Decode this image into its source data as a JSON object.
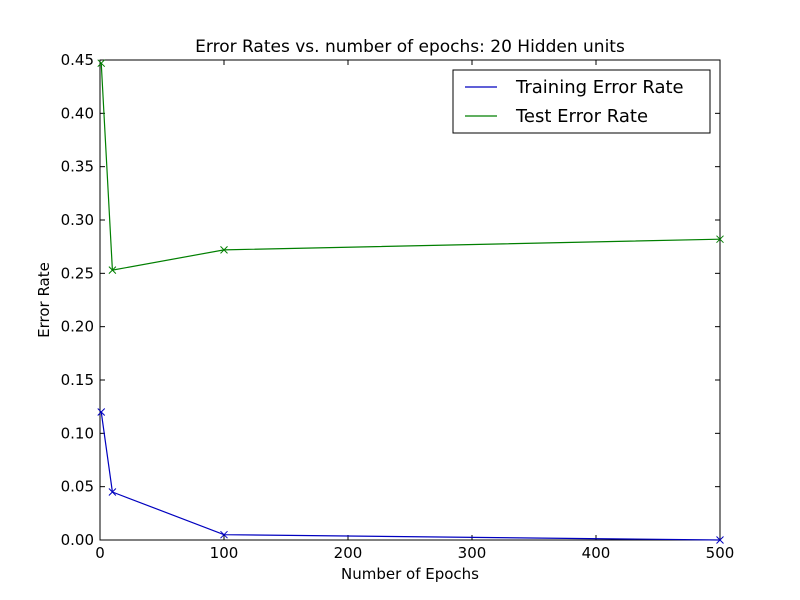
{
  "chart_data": {
    "type": "line",
    "title": "Error Rates vs. number of epochs: 20 Hidden units",
    "xlabel": "Number of Epochs",
    "ylabel": "Error Rate",
    "xlim": [
      0,
      500
    ],
    "ylim": [
      0,
      0.45
    ],
    "xticks": [
      "0",
      "100",
      "200",
      "300",
      "400",
      "500"
    ],
    "yticks": [
      "0.00",
      "0.05",
      "0.10",
      "0.15",
      "0.20",
      "0.25",
      "0.30",
      "0.35",
      "0.40",
      "0.45"
    ],
    "grid": false,
    "legend_position": "top-right",
    "x": [
      1,
      10,
      100,
      500
    ],
    "series": [
      {
        "name": "Training Error Rate",
        "color": "#0000bf",
        "values": [
          0.12,
          0.045,
          0.005,
          0.0
        ]
      },
      {
        "name": "Test Error Rate",
        "color": "#007f00",
        "values": [
          0.447,
          0.253,
          0.272,
          0.282
        ]
      }
    ]
  }
}
